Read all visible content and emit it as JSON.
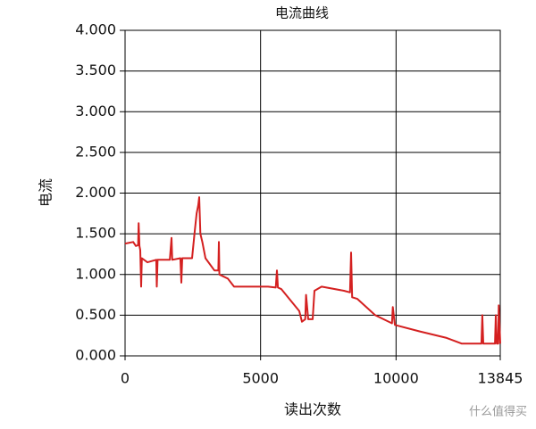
{
  "chart_data": {
    "type": "line",
    "title": "电流曲线",
    "x_label": "读出次数",
    "y_label": "电流",
    "xlim": [
      0,
      13845
    ],
    "xticks": [
      0,
      5000,
      10000,
      13845
    ],
    "ylim": [
      0,
      4
    ],
    "yticks": [
      {
        "value": 0,
        "label": "0.000"
      },
      {
        "value": 0.5,
        "label": "0.500"
      },
      {
        "value": 1,
        "label": "1.000"
      },
      {
        "value": 1.5,
        "label": "1.500"
      },
      {
        "value": 2,
        "label": "2.000"
      },
      {
        "value": 2.5,
        "label": "2.500"
      },
      {
        "value": 3,
        "label": "3.000"
      },
      {
        "value": 3.5,
        "label": "3.500"
      },
      {
        "value": 4,
        "label": "4.000"
      }
    ],
    "grid": true,
    "series": [
      {
        "name": "电流",
        "color": "#d42020",
        "x": [
          0,
          300,
          400,
          480,
          500,
          530,
          560,
          593,
          620,
          824,
          1150,
          1170,
          1200,
          1650,
          1714,
          1740,
          2040,
          2077,
          2110,
          2472,
          2560,
          2640,
          2700,
          2736,
          2780,
          2850,
          2966,
          3296,
          3440,
          3460,
          3480,
          3790,
          4021,
          5274,
          5560,
          5603,
          5640,
          5768,
          6427,
          6526,
          6650,
          6680,
          6757,
          6922,
          6988,
          7251,
          8075,
          8300,
          8339,
          8380,
          8570,
          9229,
          9850,
          9880,
          9954,
          10877,
          11866,
          12426,
          13150,
          13184,
          13220,
          13650,
          13679,
          13720,
          13770,
          13790,
          13845
        ],
        "values": [
          1.38,
          1.4,
          1.35,
          1.36,
          1.63,
          1.35,
          1.3,
          0.85,
          1.2,
          1.15,
          1.18,
          0.85,
          1.18,
          1.18,
          1.45,
          1.18,
          1.2,
          0.9,
          1.2,
          1.2,
          1.5,
          1.75,
          1.85,
          1.95,
          1.5,
          1.4,
          1.2,
          1.05,
          1.05,
          1.4,
          1.0,
          0.95,
          0.85,
          0.85,
          0.84,
          1.05,
          0.84,
          0.82,
          0.55,
          0.42,
          0.45,
          0.75,
          0.45,
          0.45,
          0.8,
          0.85,
          0.8,
          0.78,
          1.27,
          0.72,
          0.7,
          0.5,
          0.4,
          0.6,
          0.38,
          0.3,
          0.22,
          0.15,
          0.15,
          0.5,
          0.15,
          0.15,
          0.5,
          0.15,
          0.15,
          0.62,
          0.15
        ]
      }
    ],
    "watermark": "什么值得买"
  }
}
